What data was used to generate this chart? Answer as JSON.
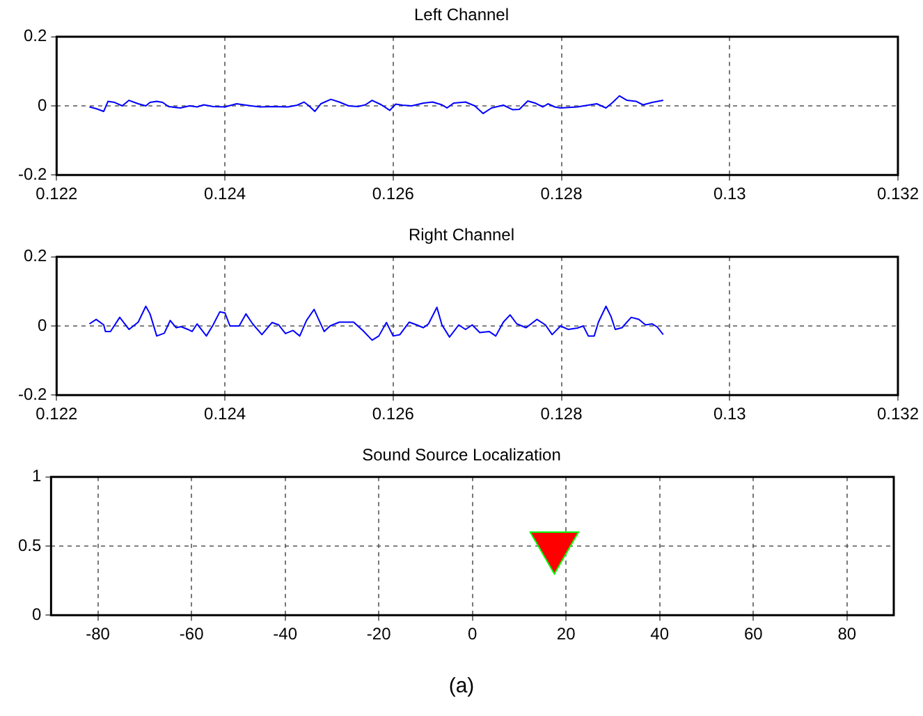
{
  "chart_data": [
    {
      "type": "line",
      "title": "Left Channel",
      "xlim": [
        0.122,
        0.132
      ],
      "xticks": [
        0.122,
        0.124,
        0.126,
        0.128,
        0.13,
        0.132
      ],
      "ylim": [
        -0.2,
        0.2
      ],
      "yticks": [
        -0.2,
        0,
        0.2
      ],
      "grid": true,
      "line_style": "solid",
      "marker": "none",
      "legend": false,
      "series": [
        {
          "color": "#0000ff",
          "x": [
            0.12239,
            0.12247,
            0.12256,
            0.12261,
            0.12269,
            0.12278,
            0.12286,
            0.12297,
            0.12306,
            0.12311,
            0.12319,
            0.12326,
            0.12333,
            0.12347,
            0.12358,
            0.12367,
            0.12375,
            0.12386,
            0.124,
            0.12414,
            0.12431,
            0.12442,
            0.12458,
            0.12475,
            0.12486,
            0.12494,
            0.125,
            0.12507,
            0.12514,
            0.12526,
            0.12536,
            0.12547,
            0.12558,
            0.12567,
            0.12575,
            0.12586,
            0.12596,
            0.12603,
            0.12611,
            0.12622,
            0.12636,
            0.12647,
            0.12658,
            0.12664,
            0.12672,
            0.12686,
            0.12697,
            0.12707,
            0.12717,
            0.12731,
            0.12742,
            0.1275,
            0.1276,
            0.12769,
            0.12778,
            0.12784,
            0.12792,
            0.12799,
            0.12819,
            0.12842,
            0.12853,
            0.12861,
            0.12869,
            0.12878,
            0.12889,
            0.12897,
            0.12908,
            0.12921
          ],
          "values": [
            -0.003,
            -0.008,
            -0.016,
            0.013,
            0.01,
            0,
            0.016,
            0.006,
            0,
            0.01,
            0.013,
            0.01,
            -0.002,
            -0.006,
            0,
            -0.003,
            0.003,
            -0.002,
            -0.003,
            0.006,
            0,
            -0.003,
            -0.002,
            -0.003,
            0.002,
            0.011,
            0,
            -0.016,
            0.006,
            0.019,
            0.011,
            0,
            -0.002,
            0.003,
            0.016,
            0.003,
            -0.013,
            0.005,
            0.002,
            0,
            0.008,
            0.011,
            0.003,
            -0.006,
            0.008,
            0.011,
            0,
            -0.022,
            -0.006,
            0.002,
            -0.011,
            -0.01,
            0.014,
            0.008,
            -0.003,
            0.006,
            -0.003,
            -0.006,
            -0.003,
            0.006,
            -0.006,
            0.01,
            0.029,
            0.016,
            0.013,
            0.003,
            0.01,
            0.016
          ]
        }
      ]
    },
    {
      "type": "line",
      "title": "Right Channel",
      "xlim": [
        0.122,
        0.132
      ],
      "xticks": [
        0.122,
        0.124,
        0.126,
        0.128,
        0.13,
        0.132
      ],
      "ylim": [
        -0.2,
        0.2
      ],
      "yticks": [
        -0.2,
        0,
        0.2
      ],
      "grid": true,
      "line_style": "solid",
      "marker": "none",
      "legend": false,
      "series": [
        {
          "color": "#0000ff",
          "x": [
            0.12239,
            0.12247,
            0.12256,
            0.12258,
            0.12264,
            0.12275,
            0.12286,
            0.12297,
            0.12306,
            0.12311,
            0.12319,
            0.12328,
            0.12335,
            0.12342,
            0.12348,
            0.12356,
            0.12361,
            0.12367,
            0.12378,
            0.12386,
            0.12394,
            0.124,
            0.12406,
            0.12417,
            0.12425,
            0.12433,
            0.12444,
            0.12456,
            0.12464,
            0.12472,
            0.12481,
            0.12489,
            0.12497,
            0.12506,
            0.12513,
            0.12518,
            0.12525,
            0.12536,
            0.12553,
            0.12564,
            0.12575,
            0.12583,
            0.12592,
            0.126,
            0.12608,
            0.12619,
            0.12628,
            0.12636,
            0.12642,
            0.12652,
            0.12658,
            0.12667,
            0.12678,
            0.12686,
            0.12694,
            0.12703,
            0.12714,
            0.12722,
            0.12731,
            0.12739,
            0.12747,
            0.12758,
            0.12771,
            0.12781,
            0.12789,
            0.12799,
            0.12808,
            0.12819,
            0.12826,
            0.12832,
            0.12839,
            0.12844,
            0.12853,
            0.12859,
            0.12864,
            0.12872,
            0.12883,
            0.12892,
            0.129,
            0.12908,
            0.12914,
            0.12921
          ],
          "values": [
            0.006,
            0.019,
            0.003,
            -0.016,
            -0.016,
            0.025,
            -0.01,
            0.011,
            0.057,
            0.035,
            -0.029,
            -0.021,
            0.016,
            -0.005,
            -0.002,
            -0.01,
            -0.016,
            0.006,
            -0.029,
            0.003,
            0.041,
            0.038,
            0,
            0,
            0.035,
            0.006,
            -0.025,
            0.01,
            0.003,
            -0.022,
            -0.013,
            -0.029,
            0.016,
            0.048,
            0.011,
            -0.016,
            0,
            0.011,
            0.011,
            -0.013,
            -0.041,
            -0.029,
            0.01,
            -0.029,
            -0.025,
            0.011,
            0.003,
            -0.005,
            0.006,
            0.054,
            0.003,
            -0.032,
            0.003,
            -0.01,
            0.003,
            -0.019,
            -0.016,
            -0.029,
            0.011,
            0.032,
            0.006,
            -0.005,
            0.019,
            0.003,
            -0.025,
            0,
            -0.01,
            -0.006,
            0,
            -0.029,
            -0.029,
            0.011,
            0.057,
            0.027,
            -0.01,
            -0.005,
            0.025,
            0.019,
            0.003,
            0.006,
            -0.003,
            -0.025
          ]
        }
      ]
    },
    {
      "type": "scatter",
      "title": "Sound Source Localization",
      "xlim": [
        -90,
        90
      ],
      "xticks": [
        -80,
        -60,
        -40,
        -20,
        0,
        20,
        40,
        60,
        80
      ],
      "ylim": [
        0,
        1
      ],
      "yticks": [
        0,
        0.5,
        1
      ],
      "grid": true,
      "marker": "triangle",
      "legend": false,
      "series": [
        {
          "color": "#ff0000",
          "x": [
            17.5
          ],
          "values": [
            0.5
          ]
        }
      ],
      "annotations": [
        "(a)"
      ]
    }
  ]
}
